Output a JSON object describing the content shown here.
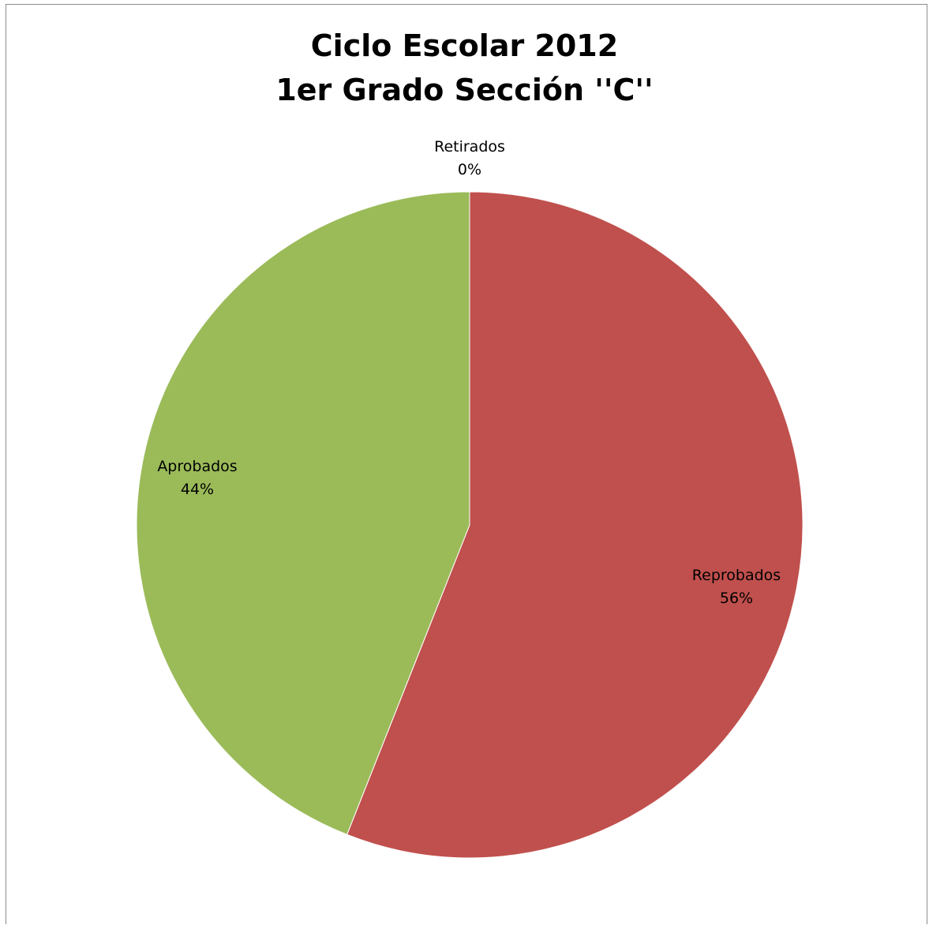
{
  "chart_data": {
    "type": "pie",
    "title_lines": [
      "Ciclo Escolar 2012",
      "1er Grado Sección ''C''"
    ],
    "slices": [
      {
        "name": "Reprobados",
        "value": 56,
        "label": "56%",
        "color": "#c0504d"
      },
      {
        "name": "Retirados",
        "value": 0,
        "label": "0%",
        "color": "#4f81bd"
      },
      {
        "name": "Aprobados",
        "value": 44,
        "label": "44%",
        "color": "#9bbb59"
      }
    ]
  }
}
